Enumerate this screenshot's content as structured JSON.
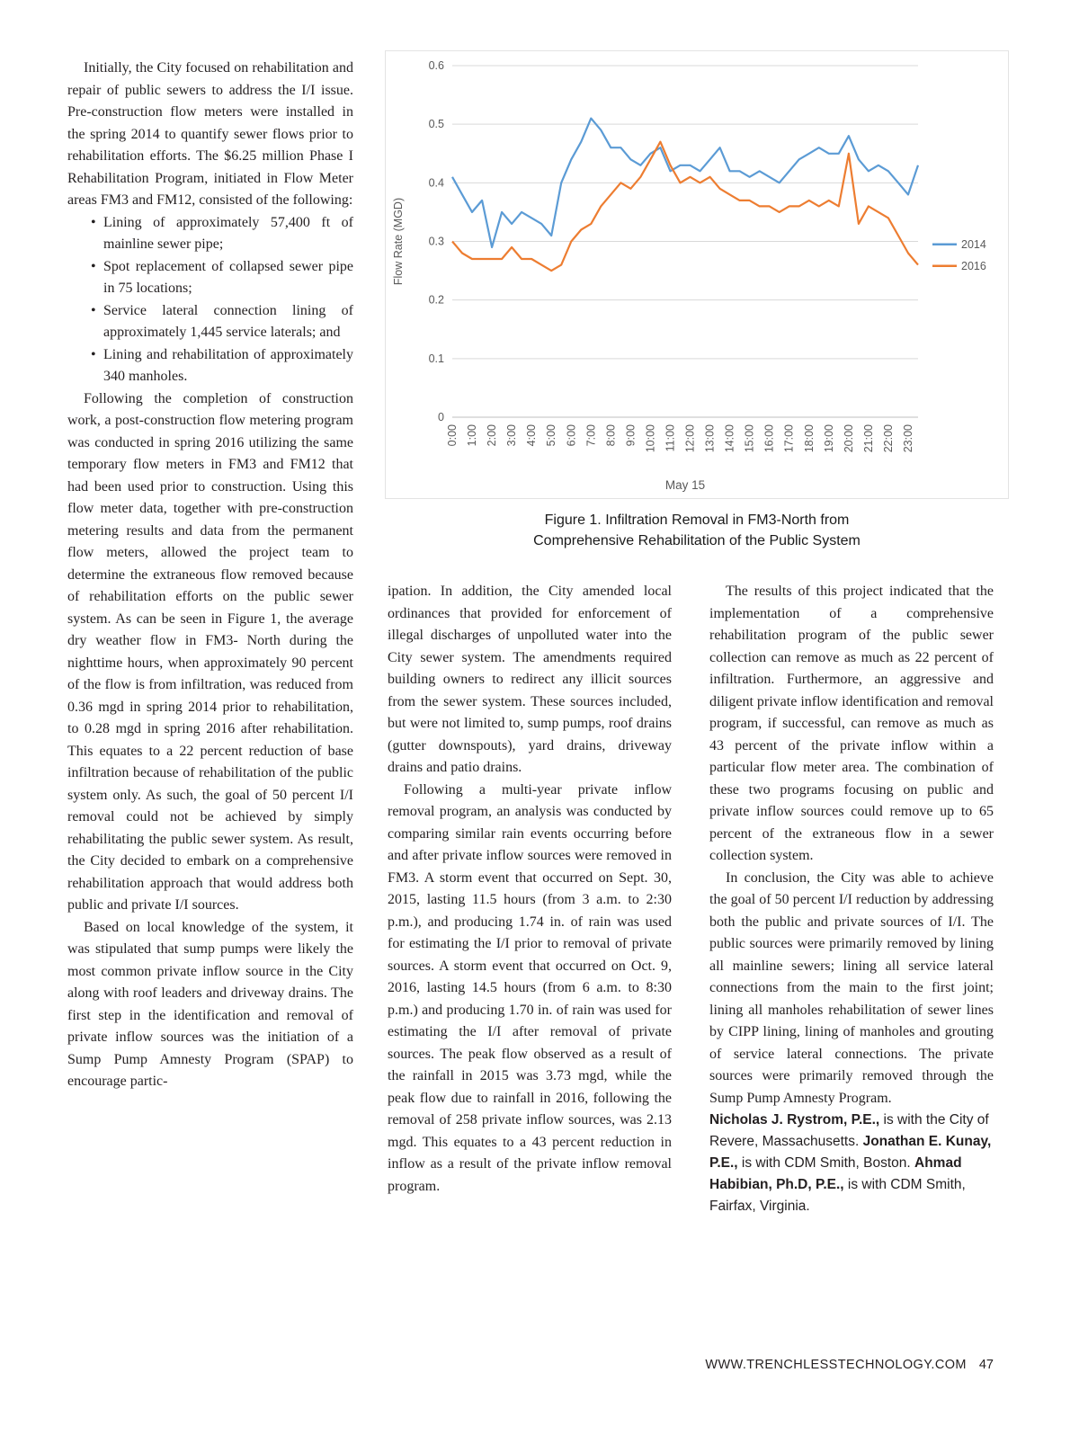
{
  "col1": {
    "para1": "Initially, the City focused on rehabilitation and repair of public sewers to address the I/I issue. Pre-construction flow meters were installed in the spring 2014 to quantify sewer flows prior to rehabilitation efforts. The $6.25 million Phase I Rehabilitation Program, initiated in Flow Meter areas FM3 and FM12, consisted of the following:",
    "bullets": [
      "Lining of approximately 57,400 ft of mainline sewer pipe;",
      "Spot replacement of collapsed sewer pipe in 75 locations;",
      "Service lateral connection lining of approximately 1,445 service laterals; and",
      "Lining and rehabilitation of approximately 340 manholes."
    ],
    "para2": "Following the completion of construction work, a post-construction flow metering program was conducted in spring 2016 utilizing the same temporary flow meters in FM3 and FM12 that had been used prior to construction. Using this flow meter data, together with pre-construction metering results and data from the permanent flow meters, allowed the project team to determine the extraneous flow removed because of rehabilitation efforts on the public sewer system. As can be seen in Figure 1, the average dry weather flow in FM3- North during the nighttime hours, when approximately 90 percent of the flow is from infiltration, was reduced from 0.36 mgd in spring 2014 prior to rehabilitation, to 0.28 mgd in spring 2016 after rehabilitation. This equates to a 22 percent reduction of base infiltration because of rehabilitation of the public system only. As such, the goal of 50 percent I/I removal could not be achieved by simply rehabilitating the public sewer system. As result, the City decided to embark on a comprehensive rehabilitation approach that would address both public and private I/I sources.",
    "para3": "Based on local knowledge of the system, it was stipulated that sump pumps were likely the most common private inflow source in the City along with roof leaders and driveway drains. The first step in the identification and removal of private inflow sources was the initiation of a Sump Pump Amnesty Program (SPAP) to encourage partic-"
  },
  "figure": {
    "caption_line1": "Figure 1. Infiltration Removal in FM3-North from",
    "caption_line2": "Comprehensive Rehabilitation of the Public System"
  },
  "chart_data": {
    "type": "line",
    "title": "",
    "xlabel": "May 15",
    "ylabel": "Flow Rate (MGD)",
    "ylim": [
      0,
      0.6
    ],
    "yticks": [
      0,
      0.1,
      0.2,
      0.3,
      0.4,
      0.5,
      0.6
    ],
    "grid": true,
    "legend_position": "right",
    "points_per_tick": 2,
    "x_tick_labels": [
      "0:00",
      "1:00",
      "2:00",
      "3:00",
      "4:00",
      "5:00",
      "6:00",
      "7:00",
      "8:00",
      "9:00",
      "10:00",
      "11:00",
      "12:00",
      "13:00",
      "14:00",
      "15:00",
      "16:00",
      "17:00",
      "18:00",
      "19:00",
      "20:00",
      "21:00",
      "22:00",
      "23:00"
    ],
    "series": [
      {
        "name": "2014",
        "color": "#5B9BD5",
        "values": [
          0.41,
          0.38,
          0.35,
          0.37,
          0.29,
          0.35,
          0.33,
          0.35,
          0.34,
          0.33,
          0.31,
          0.4,
          0.44,
          0.47,
          0.51,
          0.49,
          0.46,
          0.46,
          0.44,
          0.43,
          0.45,
          0.46,
          0.42,
          0.43,
          0.43,
          0.42,
          0.44,
          0.46,
          0.42,
          0.42,
          0.41,
          0.42,
          0.41,
          0.4,
          0.42,
          0.44,
          0.45,
          0.46,
          0.45,
          0.45,
          0.48,
          0.44,
          0.42,
          0.43,
          0.42,
          0.4,
          0.38,
          0.43
        ]
      },
      {
        "name": "2016",
        "color": "#ED7D31",
        "values": [
          0.3,
          0.28,
          0.27,
          0.27,
          0.27,
          0.27,
          0.29,
          0.27,
          0.27,
          0.26,
          0.25,
          0.26,
          0.3,
          0.32,
          0.33,
          0.36,
          0.38,
          0.4,
          0.39,
          0.41,
          0.44,
          0.47,
          0.43,
          0.4,
          0.41,
          0.4,
          0.41,
          0.39,
          0.38,
          0.37,
          0.37,
          0.36,
          0.36,
          0.35,
          0.36,
          0.36,
          0.37,
          0.36,
          0.37,
          0.36,
          0.45,
          0.33,
          0.36,
          0.35,
          0.34,
          0.31,
          0.28,
          0.26
        ]
      }
    ]
  },
  "col2": {
    "para1": "ipation. In addition, the City amended local ordinances that provided for enforcement of illegal discharges of unpolluted water into the City sewer system. The amendments required building owners to redirect any illicit sources from the sewer system. These sources included, but were not limited to, sump pumps, roof drains (gutter downspouts), yard drains, driveway drains and patio drains.",
    "para2": "Following a multi-year private inflow removal program, an analysis was conducted by comparing similar rain events occurring before and after private inflow sources were removed in FM3. A storm event that occurred on Sept. 30, 2015, lasting 11.5 hours (from 3 a.m. to 2:30 p.m.), and producing 1.74 in. of rain was used for estimating the I/I prior to removal of private sources. A storm event that occurred on Oct. 9, 2016, lasting 14.5 hours (from 6 a.m. to 8:30 p.m.) and producing 1.70 in. of rain was used for estimating the I/I after removal of private sources. The peak flow observed as a result of the rainfall in 2015 was 3.73 mgd, while the peak flow due to rainfall in 2016, following the removal of 258 private inflow sources, was 2.13 mgd. This equates to a 43 percent reduction in inflow as a result of the private inflow removal program."
  },
  "col3": {
    "para1": "The results of this project indicated that the implementation of a comprehensive rehabilitation program of the public sewer collection can remove as much as 22 percent of infiltration. Furthermore, an aggressive and diligent private inflow identification and removal program, if successful, can remove as much as 43 percent of the private inflow within a particular flow meter area. The combination of these two programs focusing on public and private inflow sources could remove up to 65 percent of the extraneous flow in a sewer collection system.",
    "para2": "In conclusion, the City was able to achieve the goal of 50 percent I/I reduction by addressing both the public and private sources of I/I. The public sources were primarily removed by lining all mainline sewers; lining all service lateral connections from the main to the first joint; lining all manholes rehabilitation of sewer lines by CIPP lining, lining of manholes and grouting of service lateral connections. The private sources were primarily removed through the Sump Pump Amnesty Program.",
    "authors": [
      {
        "name": "Nicholas J. Rystrom, P.E.,",
        "text": " is with the City of Revere, Massachusetts. "
      },
      {
        "name": "Jonathan E. Kunay, P.E.,",
        "text": " is with CDM Smith, Boston. "
      },
      {
        "name": "Ahmad Habibian, Ph.D, P.E.,",
        "text": " is with CDM Smith, Fairfax, Virginia."
      }
    ]
  },
  "footer": {
    "site": "WWW.TRENCHLESSTECHNOLOGY.COM",
    "page_number": "47"
  }
}
